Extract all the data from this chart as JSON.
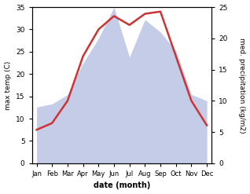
{
  "months": [
    "Jan",
    "Feb",
    "Mar",
    "Apr",
    "May",
    "Jun",
    "Jul",
    "Aug",
    "Sep",
    "Oct",
    "Nov",
    "Dec"
  ],
  "temperature": [
    7.5,
    9.0,
    14.0,
    24.0,
    30.0,
    33.0,
    31.0,
    33.5,
    34.0,
    24.0,
    14.0,
    8.5
  ],
  "precipitation": [
    9.0,
    9.5,
    11.0,
    16.0,
    20.0,
    25.0,
    17.0,
    23.0,
    21.0,
    18.0,
    11.0,
    10.0
  ],
  "temp_color": "#cc3333",
  "precip_fill_color": "#c5cce8",
  "ylim_temp": [
    0,
    35
  ],
  "ylim_precip": [
    0,
    25
  ],
  "ylabel_left": "max temp (C)",
  "ylabel_right": "med. precipitation (kg/m2)",
  "xlabel": "date (month)",
  "left_yticks": [
    0,
    5,
    10,
    15,
    20,
    25,
    30,
    35
  ],
  "right_yticks": [
    0,
    5,
    10,
    15,
    20,
    25
  ],
  "bg_color": "#ffffff"
}
